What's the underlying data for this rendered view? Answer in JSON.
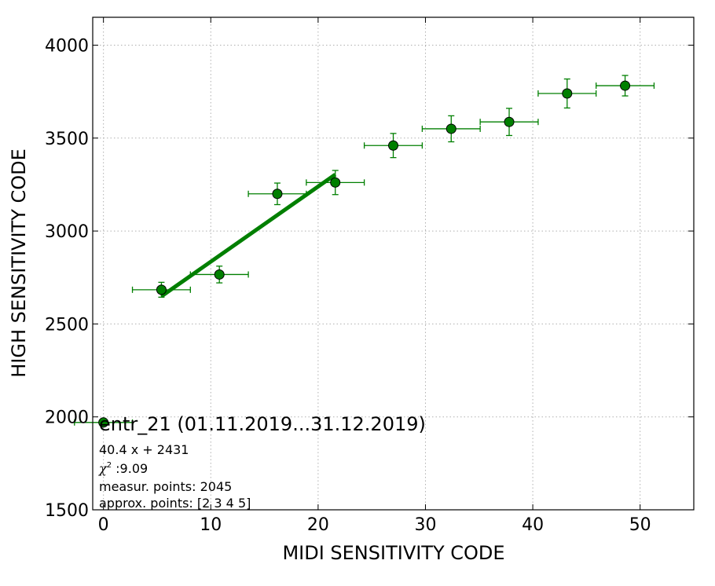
{
  "chart_data": {
    "type": "scatter",
    "xlabel": "MIDI SENSITIVITY CODE",
    "ylabel": "HIGH SENSITIVITY CODE",
    "xlim": [
      -1,
      55
    ],
    "ylim": [
      1500,
      4150
    ],
    "xticks": [
      0,
      10,
      20,
      30,
      40,
      50
    ],
    "yticks": [
      1500,
      2000,
      2500,
      3000,
      3500,
      4000
    ],
    "grid": true,
    "colors": {
      "marker": "#007f00",
      "fit": "#007f00",
      "errorbar": "#007f00"
    },
    "points": [
      {
        "x": 0,
        "y": 1970,
        "xerr": 2.7,
        "yerr": 0
      },
      {
        "x": 5.4,
        "y": 2684,
        "xerr": 2.7,
        "yerr": 40
      },
      {
        "x": 10.8,
        "y": 2766,
        "xerr": 2.7,
        "yerr": 45
      },
      {
        "x": 16.2,
        "y": 3200,
        "xerr": 2.7,
        "yerr": 58
      },
      {
        "x": 21.6,
        "y": 3261,
        "xerr": 2.7,
        "yerr": 65
      },
      {
        "x": 27.0,
        "y": 3460,
        "xerr": 2.7,
        "yerr": 65
      },
      {
        "x": 32.4,
        "y": 3550,
        "xerr": 2.7,
        "yerr": 70
      },
      {
        "x": 37.8,
        "y": 3587,
        "xerr": 2.7,
        "yerr": 73
      },
      {
        "x": 43.2,
        "y": 3740,
        "xerr": 2.7,
        "yerr": 78
      },
      {
        "x": 48.6,
        "y": 3782,
        "xerr": 2.7,
        "yerr": 55
      }
    ],
    "fit_line": {
      "x": [
        5.4,
        21.6
      ],
      "y": [
        2649,
        3304
      ]
    },
    "annotation": {
      "title": "entr_21 (01.11.2019...31.12.2019)",
      "equation": "40.4 x + 2431",
      "chi_symbol": "χ",
      "chi_superscript": "2",
      "chi_value": " :9.09",
      "measur_points": "measur. points: 2045",
      "approx_points": "approx. points: [2 3 4 5]"
    }
  }
}
